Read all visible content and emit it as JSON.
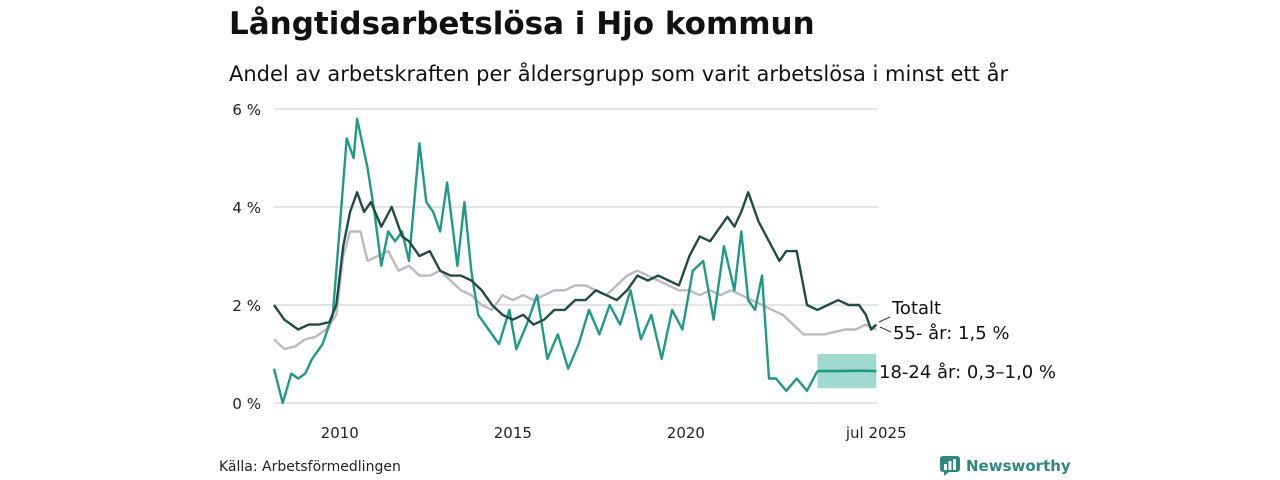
{
  "title": "Långtidsarbetslösa i Hjo kommun",
  "subtitle": "Andel av arbetskraften per åldersgrupp som varit arbetslösa i minst ett år",
  "source": "Källa: Arbetsförmedlingen",
  "brand": {
    "name": "Newsworthy",
    "icon": "newsworthy-logo-icon"
  },
  "colors": {
    "totalt": "#1f4d45",
    "age55": "#bdb8c4",
    "age1824": "#1f9a87",
    "band": "#8fd3c6",
    "grid": "#dcdcdc"
  },
  "chart_data": {
    "type": "line",
    "title": "Långtidsarbetslösa i Hjo kommun",
    "subtitle": "Andel av arbetskraften per åldersgrupp som varit arbetslösa i minst ett år",
    "xlabel": "",
    "ylabel": "",
    "xlim": [
      2008.1,
      2025.55
    ],
    "ylim": [
      0,
      6
    ],
    "grid": true,
    "yticks": [
      0,
      2,
      4,
      6
    ],
    "ytick_labels": [
      "0 %",
      "2 %",
      "4 %",
      "6 %"
    ],
    "xticks": [
      2010,
      2015,
      2020,
      2025.5
    ],
    "xtick_labels": [
      "2010",
      "2015",
      "2020",
      "jul 2025"
    ],
    "series": [
      {
        "name": "Totalt",
        "label": "Totalt",
        "x": [
          2008.1,
          2008.4,
          2008.6,
          2008.8,
          2009.1,
          2009.4,
          2009.7,
          2009.9,
          2010.1,
          2010.3,
          2010.5,
          2010.7,
          2010.9,
          2011.2,
          2011.5,
          2011.8,
          2012.0,
          2012.3,
          2012.6,
          2012.9,
          2013.2,
          2013.5,
          2013.8,
          2014.1,
          2014.4,
          2014.7,
          2015.0,
          2015.3,
          2015.6,
          2015.9,
          2016.2,
          2016.5,
          2016.8,
          2017.1,
          2017.4,
          2017.7,
          2018.0,
          2018.3,
          2018.6,
          2018.9,
          2019.2,
          2019.5,
          2019.8,
          2020.1,
          2020.4,
          2020.7,
          2021.0,
          2021.2,
          2021.4,
          2021.6,
          2021.8,
          2022.1,
          2022.4,
          2022.7,
          2022.9,
          2023.2,
          2023.5,
          2023.8,
          2024.1,
          2024.4,
          2024.7,
          2025.0,
          2025.2,
          2025.35,
          2025.5
        ],
        "y": [
          2.0,
          1.7,
          1.6,
          1.5,
          1.6,
          1.6,
          1.65,
          2.0,
          3.2,
          3.9,
          4.3,
          3.9,
          4.1,
          3.6,
          4.0,
          3.4,
          3.3,
          3.0,
          3.1,
          2.7,
          2.6,
          2.6,
          2.5,
          2.3,
          2.0,
          1.8,
          1.7,
          1.8,
          1.6,
          1.7,
          1.9,
          1.9,
          2.1,
          2.1,
          2.3,
          2.2,
          2.1,
          2.3,
          2.6,
          2.5,
          2.6,
          2.5,
          2.4,
          3.0,
          3.4,
          3.3,
          3.6,
          3.8,
          3.6,
          3.9,
          4.3,
          3.7,
          3.3,
          2.9,
          3.1,
          3.1,
          2.0,
          1.9,
          2.0,
          2.1,
          2.0,
          2.0,
          1.8,
          1.5,
          1.6
        ]
      },
      {
        "name": "55- år",
        "label": "55- år: 1,5 %",
        "x": [
          2008.1,
          2008.4,
          2008.7,
          2009.0,
          2009.3,
          2009.6,
          2009.9,
          2010.1,
          2010.3,
          2010.6,
          2010.8,
          2011.1,
          2011.4,
          2011.7,
          2012.0,
          2012.3,
          2012.6,
          2012.9,
          2013.2,
          2013.5,
          2013.8,
          2014.1,
          2014.4,
          2014.7,
          2015.0,
          2015.3,
          2015.6,
          2015.9,
          2016.2,
          2016.5,
          2016.8,
          2017.1,
          2017.4,
          2017.7,
          2018.0,
          2018.3,
          2018.6,
          2018.9,
          2019.2,
          2019.5,
          2019.8,
          2020.1,
          2020.4,
          2020.7,
          2021.0,
          2021.3,
          2021.6,
          2021.9,
          2022.2,
          2022.5,
          2022.8,
          2023.1,
          2023.4,
          2023.7,
          2024.0,
          2024.3,
          2024.6,
          2024.9,
          2025.2,
          2025.5
        ],
        "y": [
          1.3,
          1.1,
          1.15,
          1.3,
          1.35,
          1.5,
          1.8,
          3.0,
          3.5,
          3.5,
          2.9,
          3.0,
          3.1,
          2.7,
          2.8,
          2.6,
          2.6,
          2.7,
          2.5,
          2.3,
          2.2,
          2.0,
          1.9,
          2.2,
          2.1,
          2.2,
          2.1,
          2.2,
          2.3,
          2.3,
          2.4,
          2.4,
          2.3,
          2.2,
          2.4,
          2.6,
          2.7,
          2.6,
          2.5,
          2.4,
          2.3,
          2.3,
          2.2,
          2.3,
          2.2,
          2.3,
          2.2,
          2.1,
          2.0,
          1.9,
          1.8,
          1.6,
          1.4,
          1.4,
          1.4,
          1.45,
          1.5,
          1.5,
          1.6,
          1.5
        ]
      },
      {
        "name": "18-24 år",
        "label": "18-24 år: 0,3–1,0 %",
        "x": [
          2008.1,
          2008.35,
          2008.6,
          2008.8,
          2009.0,
          2009.2,
          2009.5,
          2009.8,
          2010.0,
          2010.2,
          2010.4,
          2010.5,
          2010.8,
          2011.0,
          2011.2,
          2011.4,
          2011.6,
          2011.8,
          2012.0,
          2012.3,
          2012.5,
          2012.7,
          2012.9,
          2013.1,
          2013.4,
          2013.6,
          2013.8,
          2014.0,
          2014.3,
          2014.6,
          2014.9,
          2015.1,
          2015.4,
          2015.7,
          2016.0,
          2016.3,
          2016.6,
          2016.9,
          2017.2,
          2017.5,
          2017.8,
          2018.1,
          2018.4,
          2018.7,
          2019.0,
          2019.3,
          2019.6,
          2019.9,
          2020.2,
          2020.5,
          2020.8,
          2021.1,
          2021.4,
          2021.6,
          2021.8,
          2022.0,
          2022.2,
          2022.4,
          2022.6,
          2022.9,
          2023.2,
          2023.5,
          2023.8
        ],
        "y": [
          0.7,
          0.0,
          0.6,
          0.5,
          0.6,
          0.9,
          1.2,
          1.8,
          3.6,
          5.4,
          5.0,
          5.8,
          4.8,
          3.9,
          2.8,
          3.5,
          3.3,
          3.5,
          2.9,
          5.3,
          4.1,
          3.9,
          3.5,
          4.5,
          2.8,
          4.1,
          2.7,
          1.8,
          1.5,
          1.2,
          1.9,
          1.1,
          1.6,
          2.2,
          0.9,
          1.4,
          0.7,
          1.2,
          1.9,
          1.4,
          2.0,
          1.6,
          2.3,
          1.3,
          1.8,
          0.9,
          1.9,
          1.5,
          2.7,
          2.9,
          1.7,
          3.2,
          2.3,
          3.5,
          2.1,
          1.9,
          2.6,
          0.5,
          0.5,
          0.25,
          0.5,
          0.25,
          0.65
        ]
      }
    ],
    "forecast": {
      "series": "18-24 år",
      "x": [
        2023.8,
        2024.4,
        2025.0,
        2025.5
      ],
      "y": [
        0.65,
        0.65,
        0.66,
        0.65
      ],
      "lower": [
        0.3,
        0.3,
        0.3,
        0.3
      ],
      "upper": [
        1.0,
        1.0,
        1.0,
        1.0
      ]
    }
  }
}
